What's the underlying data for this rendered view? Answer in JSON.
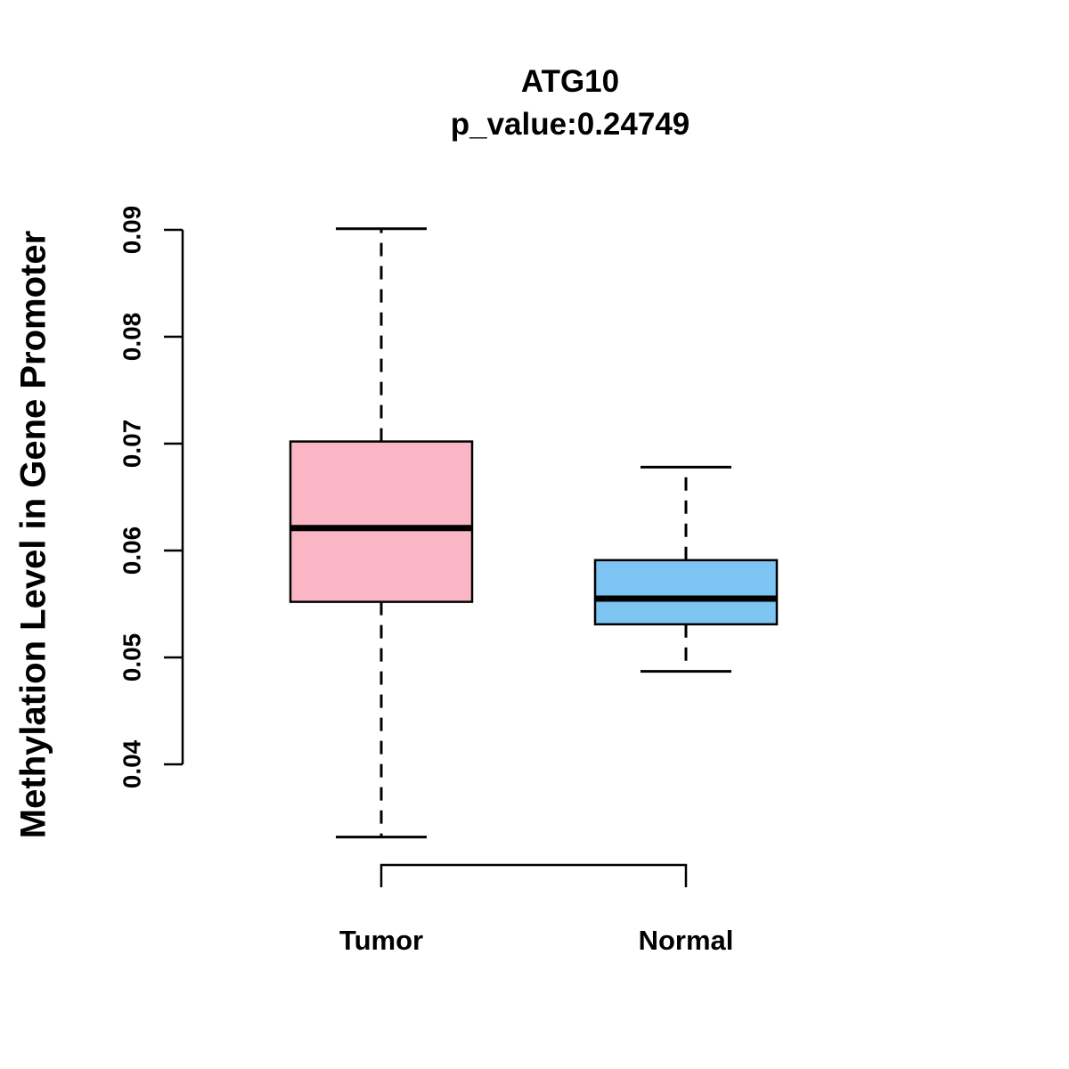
{
  "title": "ATG10",
  "subtitle": "p_value:0.24749",
  "ylabel": "Methylation Level in Gene Promoter",
  "chart_data": {
    "type": "boxplot",
    "title": "ATG10",
    "subtitle": "p_value:0.24749",
    "ylabel": "Methylation Level in Gene Promoter",
    "xlabel": "",
    "categories": [
      "Tumor",
      "Normal"
    ],
    "yticks": [
      0.04,
      0.05,
      0.06,
      0.07,
      0.08,
      0.09
    ],
    "ylim": [
      0.032,
      0.091
    ],
    "grid": false,
    "legend": "none",
    "series": [
      {
        "name": "Tumor",
        "lower_whisker": 0.0332,
        "q1": 0.0552,
        "median": 0.0621,
        "q3": 0.0702,
        "upper_whisker": 0.0901,
        "color": "#FBB6C5"
      },
      {
        "name": "Normal",
        "lower_whisker": 0.0487,
        "q1": 0.0531,
        "median": 0.0555,
        "q3": 0.0591,
        "upper_whisker": 0.0678,
        "color": "#7DC4F2"
      }
    ]
  }
}
